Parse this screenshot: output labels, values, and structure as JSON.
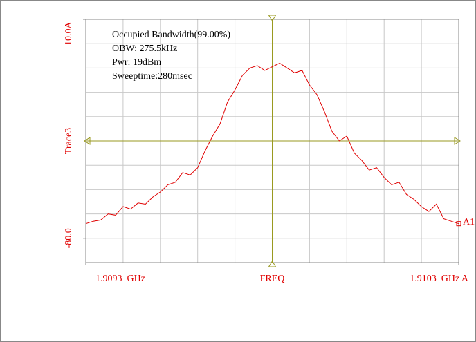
{
  "chart_data": {
    "type": "line",
    "ylabel": "Trace3",
    "xlabel": "FREQ",
    "annotations": [
      "Occupied Bandwidth(99.00%)",
      "OBW: 275.5kHz",
      "Pwr: 19dBm",
      "Sweeptime:280msec"
    ],
    "marker_label": "A1",
    "xlim": [
      1.9093,
      1.9103
    ],
    "xticks": [
      {
        "value": 1.9093,
        "label": "1.9093  GHz"
      },
      {
        "value": 1.9103,
        "label": "1.9103  GHz A"
      }
    ],
    "ylim": [
      -90,
      10
    ],
    "yticks": [
      {
        "value": 10,
        "label": "10.0A"
      },
      {
        "value": -80,
        "label": "-80.0"
      }
    ],
    "grid": true,
    "series": [
      {
        "name": "Trace3",
        "color": "#e00000",
        "x": [
          1.9093,
          1.90932,
          1.90934,
          1.90936,
          1.90938,
          1.9094,
          1.90942,
          1.90944,
          1.90946,
          1.90948,
          1.9095,
          1.90952,
          1.90954,
          1.90956,
          1.90958,
          1.9096,
          1.90962,
          1.90964,
          1.90966,
          1.90968,
          1.9097,
          1.90972,
          1.90974,
          1.90976,
          1.90978,
          1.9098,
          1.90982,
          1.90984,
          1.90986,
          1.90988,
          1.9099,
          1.90992,
          1.90994,
          1.90996,
          1.90998,
          1.91,
          1.91002,
          1.91004,
          1.91006,
          1.91008,
          1.9101,
          1.91012,
          1.91014,
          1.91016,
          1.91018,
          1.9102,
          1.91022,
          1.91024,
          1.91026,
          1.91028,
          1.9103
        ],
        "values": [
          -74,
          -73,
          -72.5,
          -70,
          -70.5,
          -67,
          -68,
          -65.5,
          -66,
          -63,
          -61,
          -58,
          -57,
          -53,
          -54,
          -51,
          -44,
          -38,
          -33,
          -24,
          -19,
          -13,
          -10,
          -9,
          -11,
          -9.5,
          -8,
          -10,
          -12,
          -11,
          -17,
          -21,
          -28,
          -36,
          -40,
          -38,
          -45,
          -48,
          -52,
          -51,
          -55,
          -58,
          -57,
          -62,
          -64,
          -67,
          -69,
          -66,
          -72,
          -73,
          -74
        ]
      }
    ]
  }
}
